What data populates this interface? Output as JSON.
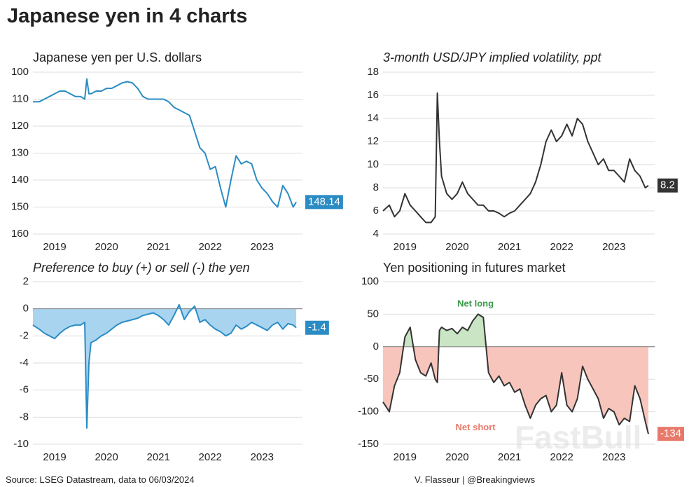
{
  "title": "Japanese yen in 4 charts",
  "source": "Source: LSEG Datastream, data to 06/03/2024",
  "credit": "V. Flasseur | @Breakingviews",
  "watermark": "FastBull",
  "chart_data": [
    {
      "type": "line",
      "title": "Japanese yen per U.S. dollars",
      "color": "#2b8cc4",
      "label_color": "#2b8cc4",
      "xlim": [
        2019.08,
        2024.28
      ],
      "xticks": [
        {
          "value": 2019.5,
          "label": "2019"
        },
        {
          "value": 2020.5,
          "label": "2020"
        },
        {
          "value": 2021.5,
          "label": "2021"
        },
        {
          "value": 2022.5,
          "label": "2022"
        },
        {
          "value": 2023.5,
          "label": "2023"
        }
      ],
      "ylim": [
        160,
        100
      ],
      "yticks": [
        100,
        110,
        120,
        130,
        140,
        150,
        160
      ],
      "grid": true,
      "x": [
        2019.08,
        2019.2,
        2019.3,
        2019.4,
        2019.5,
        2019.6,
        2019.7,
        2019.8,
        2019.9,
        2020.0,
        2020.08,
        2020.12,
        2020.16,
        2020.2,
        2020.3,
        2020.4,
        2020.5,
        2020.6,
        2020.7,
        2020.8,
        2020.9,
        2021.0,
        2021.1,
        2021.2,
        2021.3,
        2021.4,
        2021.5,
        2021.6,
        2021.7,
        2021.8,
        2021.9,
        2022.0,
        2022.1,
        2022.2,
        2022.3,
        2022.4,
        2022.5,
        2022.6,
        2022.7,
        2022.8,
        2022.9,
        2023.0,
        2023.1,
        2023.2,
        2023.3,
        2023.4,
        2023.5,
        2023.6,
        2023.7,
        2023.8,
        2023.9,
        2024.0,
        2024.1,
        2024.16
      ],
      "values": [
        111,
        111,
        110,
        109,
        108,
        107,
        107,
        108,
        109,
        109,
        110,
        102.5,
        108,
        108,
        107,
        107,
        106,
        106,
        105,
        104,
        103.5,
        104,
        106,
        109,
        110,
        110,
        110,
        110,
        111,
        113,
        114,
        115,
        116,
        122,
        128,
        130,
        136,
        135,
        143,
        150,
        140,
        131,
        134,
        133,
        134,
        140,
        143,
        145,
        148,
        150,
        142,
        145,
        150,
        148.14
      ]
    },
    {
      "type": "line",
      "title": "3-month USD/JPY implied volatility, ppt",
      "color": "#333333",
      "label_color": "#333333",
      "xlim": [
        2019.08,
        2024.28
      ],
      "xticks": [
        {
          "value": 2019.5,
          "label": "2019"
        },
        {
          "value": 2020.5,
          "label": "2020"
        },
        {
          "value": 2021.5,
          "label": "2021"
        },
        {
          "value": 2022.5,
          "label": "2022"
        },
        {
          "value": 2023.5,
          "label": "2023"
        }
      ],
      "ylim": [
        4,
        18
      ],
      "yticks": [
        4,
        6,
        8,
        10,
        12,
        14,
        16,
        18
      ],
      "grid": true,
      "x": [
        2019.08,
        2019.2,
        2019.3,
        2019.4,
        2019.5,
        2019.6,
        2019.7,
        2019.8,
        2019.9,
        2020.0,
        2020.08,
        2020.12,
        2020.16,
        2020.2,
        2020.3,
        2020.4,
        2020.5,
        2020.6,
        2020.7,
        2020.8,
        2020.9,
        2021.0,
        2021.1,
        2021.2,
        2021.3,
        2021.4,
        2021.5,
        2021.6,
        2021.7,
        2021.8,
        2021.9,
        2022.0,
        2022.1,
        2022.2,
        2022.3,
        2022.4,
        2022.5,
        2022.6,
        2022.7,
        2022.8,
        2022.9,
        2023.0,
        2023.1,
        2023.2,
        2023.3,
        2023.4,
        2023.5,
        2023.6,
        2023.7,
        2023.8,
        2023.9,
        2024.0,
        2024.1,
        2024.16
      ],
      "values": [
        6,
        6.5,
        5.5,
        6,
        7.5,
        6.5,
        6,
        5.5,
        5,
        5,
        5.5,
        16.2,
        12,
        9,
        7.5,
        7,
        7.5,
        8.5,
        7.5,
        7,
        6.5,
        6.5,
        6,
        6,
        5.8,
        5.5,
        5.8,
        6,
        6.5,
        7,
        7.5,
        8.5,
        10,
        12,
        13,
        12,
        12.5,
        13.5,
        12.5,
        14,
        13.5,
        12,
        11,
        10,
        10.5,
        9.5,
        9.5,
        9,
        8.5,
        10.5,
        9.5,
        9,
        8,
        8.2
      ]
    },
    {
      "type": "area",
      "title": "Preference to buy (+) or sell (-) the yen",
      "color": "#2b8cc4",
      "fill": "#a9d4ef",
      "label_color": "#2b8cc4",
      "xlim": [
        2019.08,
        2024.28
      ],
      "xticks": [
        {
          "value": 2019.5,
          "label": "2019"
        },
        {
          "value": 2020.5,
          "label": "2020"
        },
        {
          "value": 2021.5,
          "label": "2021"
        },
        {
          "value": 2022.5,
          "label": "2022"
        },
        {
          "value": 2023.5,
          "label": "2023"
        }
      ],
      "ylim": [
        -10,
        2
      ],
      "yticks": [
        -10,
        -8,
        -6,
        -4,
        -2,
        0,
        2
      ],
      "grid": true,
      "x": [
        2019.08,
        2019.2,
        2019.3,
        2019.4,
        2019.5,
        2019.6,
        2019.7,
        2019.8,
        2019.9,
        2020.0,
        2020.08,
        2020.12,
        2020.16,
        2020.2,
        2020.3,
        2020.4,
        2020.5,
        2020.6,
        2020.7,
        2020.8,
        2020.9,
        2021.0,
        2021.1,
        2021.2,
        2021.3,
        2021.4,
        2021.5,
        2021.6,
        2021.7,
        2021.8,
        2021.9,
        2022.0,
        2022.1,
        2022.2,
        2022.3,
        2022.4,
        2022.5,
        2022.6,
        2022.7,
        2022.8,
        2022.9,
        2023.0,
        2023.1,
        2023.2,
        2023.3,
        2023.4,
        2023.5,
        2023.6,
        2023.7,
        2023.8,
        2023.9,
        2024.0,
        2024.1,
        2024.16
      ],
      "values": [
        -1.2,
        -1.5,
        -1.8,
        -2,
        -2.2,
        -1.8,
        -1.5,
        -1.3,
        -1.2,
        -1.2,
        -1,
        -8.8,
        -4,
        -2.5,
        -2.3,
        -2,
        -1.8,
        -1.5,
        -1.2,
        -1,
        -0.9,
        -0.8,
        -0.7,
        -0.5,
        -0.4,
        -0.3,
        -0.5,
        -0.8,
        -1.2,
        -0.5,
        0.3,
        -0.8,
        -0.2,
        0.2,
        -1,
        -0.8,
        -1.2,
        -1.5,
        -1.7,
        -2,
        -1.8,
        -1.2,
        -1.5,
        -1.3,
        -1,
        -1.2,
        -1.4,
        -1.6,
        -1.2,
        -1,
        -1.5,
        -1.1,
        -1.2,
        -1.4
      ]
    },
    {
      "type": "area",
      "title": "Yen positioning in futures market",
      "color": "#333333",
      "fill_positive": "#c9e5c4",
      "fill_negative": "#f8c5bc",
      "label_color": "#e8796a",
      "annotations": [
        {
          "text": "Net long",
          "color": "#3a9a4a"
        },
        {
          "text": "Net short",
          "color": "#e8796a"
        }
      ],
      "xlim": [
        2019.08,
        2024.28
      ],
      "xticks": [
        {
          "value": 2019.5,
          "label": "2019"
        },
        {
          "value": 2020.5,
          "label": "2020"
        },
        {
          "value": 2021.5,
          "label": "2021"
        },
        {
          "value": 2022.5,
          "label": "2022"
        },
        {
          "value": 2023.5,
          "label": "2023"
        }
      ],
      "ylim": [
        -150,
        100
      ],
      "yticks": [
        -150,
        -100,
        -50,
        0,
        50,
        100
      ],
      "grid": true,
      "x": [
        2019.08,
        2019.2,
        2019.3,
        2019.4,
        2019.5,
        2019.6,
        2019.7,
        2019.8,
        2019.9,
        2020.0,
        2020.08,
        2020.12,
        2020.16,
        2020.2,
        2020.3,
        2020.4,
        2020.5,
        2020.6,
        2020.7,
        2020.8,
        2020.9,
        2021.0,
        2021.1,
        2021.2,
        2021.3,
        2021.4,
        2021.5,
        2021.6,
        2021.7,
        2021.8,
        2021.9,
        2022.0,
        2022.1,
        2022.2,
        2022.3,
        2022.4,
        2022.5,
        2022.6,
        2022.7,
        2022.8,
        2022.9,
        2023.0,
        2023.1,
        2023.2,
        2023.3,
        2023.4,
        2023.5,
        2023.6,
        2023.7,
        2023.8,
        2023.9,
        2024.0,
        2024.1,
        2024.16
      ],
      "values": [
        -85,
        -100,
        -60,
        -40,
        15,
        30,
        -20,
        -40,
        -45,
        -25,
        -50,
        -55,
        25,
        30,
        25,
        28,
        20,
        30,
        25,
        40,
        50,
        45,
        -40,
        -55,
        -45,
        -60,
        -55,
        -70,
        -65,
        -90,
        -110,
        -90,
        -80,
        -75,
        -100,
        -90,
        -40,
        -90,
        -100,
        -80,
        -30,
        -50,
        -65,
        -80,
        -110,
        -95,
        -100,
        -120,
        -110,
        -115,
        -60,
        -80,
        -115,
        -134
      ]
    }
  ]
}
